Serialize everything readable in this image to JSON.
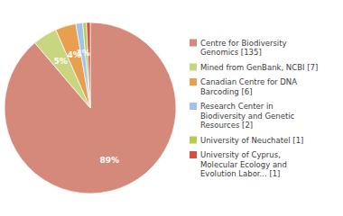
{
  "chart_data": {
    "type": "pie",
    "categories": [
      "Centre for Biodiversity\nGenomics [135]",
      "Mined from GenBank, NCBI [7]",
      "Canadian Centre for DNA\nBarcoding [6]",
      "Research Center in\nBiodiversity and Genetic\nResources [2]",
      "University of Neuchatel [1]",
      "University of Cyprus,\nMolecular Ecology and\nEvolution Labor... [1]"
    ],
    "values": [
      88.8,
      4.6,
      3.9,
      1.3,
      0.7,
      0.7
    ],
    "value_labels": [
      "89%",
      "5%",
      "4%",
      "1%",
      null,
      null
    ],
    "data_labels": true,
    "colors": [
      "#d4897a",
      "#c8d680",
      "#e8a050",
      "#a0c4e8",
      "#b8cc55",
      "#d45040"
    ],
    "legend": "right"
  }
}
